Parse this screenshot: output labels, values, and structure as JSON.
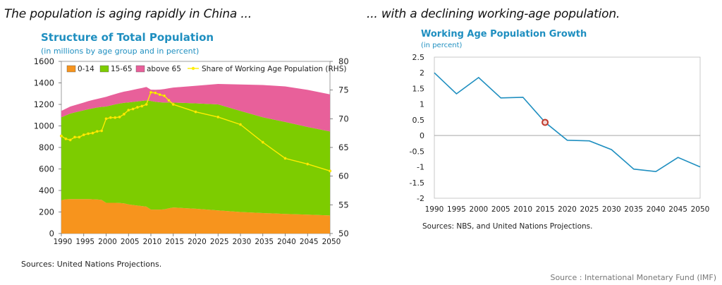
{
  "headings": {
    "left": "The population is aging rapidly in China ...",
    "right": "... with a declining working-age population."
  },
  "credit": "Source : International Monetary Fund (IMF)",
  "colors": {
    "age_0_14": "#f7941d",
    "age_15_65": "#7dcc00",
    "age_above_65": "#e8609a",
    "share_line": "#ffee00",
    "share_marker": "#ffee00",
    "growth_line": "#1f8fc0",
    "highlight_marker": "#c0392b"
  },
  "chart_data": [
    {
      "type": "area",
      "title": "Structure of Total Population",
      "subtitle": "(in millions by age group and in percent)",
      "source": "Sources: United Nations Projections.",
      "x": [
        1990,
        1991,
        1992,
        1993,
        1994,
        1995,
        1996,
        1997,
        1998,
        1999,
        2000,
        2001,
        2002,
        2003,
        2004,
        2005,
        2006,
        2007,
        2008,
        2009,
        2010,
        2011,
        2012,
        2013,
        2014,
        2015,
        2020,
        2025,
        2030,
        2035,
        2040,
        2045,
        2050
      ],
      "xticks": [
        1990,
        1995,
        2000,
        2005,
        2010,
        2015,
        2020,
        2025,
        2030,
        2035,
        2040,
        2045,
        2050
      ],
      "legend": {
        "items": [
          "0-14",
          "15-65",
          "above 65",
          "Share of Working Age Population (RHS)"
        ],
        "position": "top-left"
      },
      "series": [
        {
          "name": "0-14",
          "axis": "left",
          "stacked": true,
          "values": [
            310,
            318,
            320,
            320,
            320,
            320,
            320,
            318,
            316,
            312,
            285,
            285,
            285,
            283,
            280,
            270,
            265,
            260,
            255,
            250,
            222,
            222,
            222,
            225,
            235,
            242,
            230,
            215,
            200,
            190,
            182,
            175,
            168
          ]
        },
        {
          "name": "15-65",
          "axis": "left",
          "stacked": true,
          "values": [
            770,
            780,
            795,
            805,
            815,
            825,
            835,
            845,
            855,
            865,
            895,
            905,
            915,
            925,
            935,
            948,
            958,
            968,
            978,
            988,
            1010,
            1002,
            998,
            992,
            982,
            975,
            980,
            985,
            940,
            890,
            855,
            815,
            780
          ]
        },
        {
          "name": "above 65",
          "axis": "left",
          "stacked": true,
          "values": [
            60,
            62,
            65,
            68,
            70,
            72,
            75,
            78,
            80,
            84,
            90,
            93,
            96,
            100,
            104,
            108,
            112,
            116,
            120,
            124,
            105,
            112,
            118,
            125,
            133,
            140,
            163,
            190,
            245,
            300,
            330,
            345,
            345
          ]
        },
        {
          "name": "Share of Working Age Population (RHS)",
          "axis": "right",
          "values": [
            67,
            66.5,
            66.3,
            66.8,
            66.8,
            67.2,
            67.4,
            67.5,
            67.8,
            67.9,
            70,
            70.2,
            70.2,
            70.3,
            70.8,
            71.5,
            71.7,
            72,
            72.2,
            72.5,
            74.6,
            74.5,
            74.2,
            74,
            73.2,
            72.5,
            71.2,
            70.3,
            69,
            65.9,
            63.1,
            62.1,
            60.9
          ]
        }
      ],
      "ylim_left": [
        0,
        1600
      ],
      "yticks_left": [
        0,
        200,
        400,
        600,
        800,
        1000,
        1200,
        1400,
        1600
      ],
      "ylim_right": [
        50,
        80
      ],
      "yticks_right": [
        50,
        55,
        60,
        65,
        70,
        75,
        80
      ],
      "grid": false
    },
    {
      "type": "line",
      "title": "Working Age Population Growth",
      "subtitle": "(in percent)",
      "source": "Sources: NBS, and United Nations Projections.",
      "x": [
        1990,
        1995,
        2000,
        2005,
        2010,
        2015,
        2020,
        2025,
        2030,
        2035,
        2040,
        2045,
        2050
      ],
      "xticks": [
        1990,
        1995,
        2000,
        2005,
        2010,
        2015,
        2020,
        2025,
        2030,
        2035,
        2040,
        2045,
        2050
      ],
      "series": [
        {
          "name": "Working age population growth",
          "values": [
            2.0,
            1.33,
            1.85,
            1.2,
            1.22,
            0.42,
            -0.15,
            -0.17,
            -0.45,
            -1.07,
            -1.15,
            -0.7,
            -1.0
          ]
        }
      ],
      "highlight_point": {
        "x": 2015,
        "y": 0.42
      },
      "ylim": [
        -2,
        2.5
      ],
      "yticks": [
        -2,
        -1.5,
        -1,
        -0.5,
        0,
        0.5,
        1,
        1.5,
        2,
        2.5
      ],
      "ytick_labels": [
        "-2",
        "-1.5",
        "-1",
        "-0.5",
        "0",
        "0.5",
        "1",
        "1.5",
        "2",
        "2.5"
      ],
      "grid": false
    }
  ]
}
